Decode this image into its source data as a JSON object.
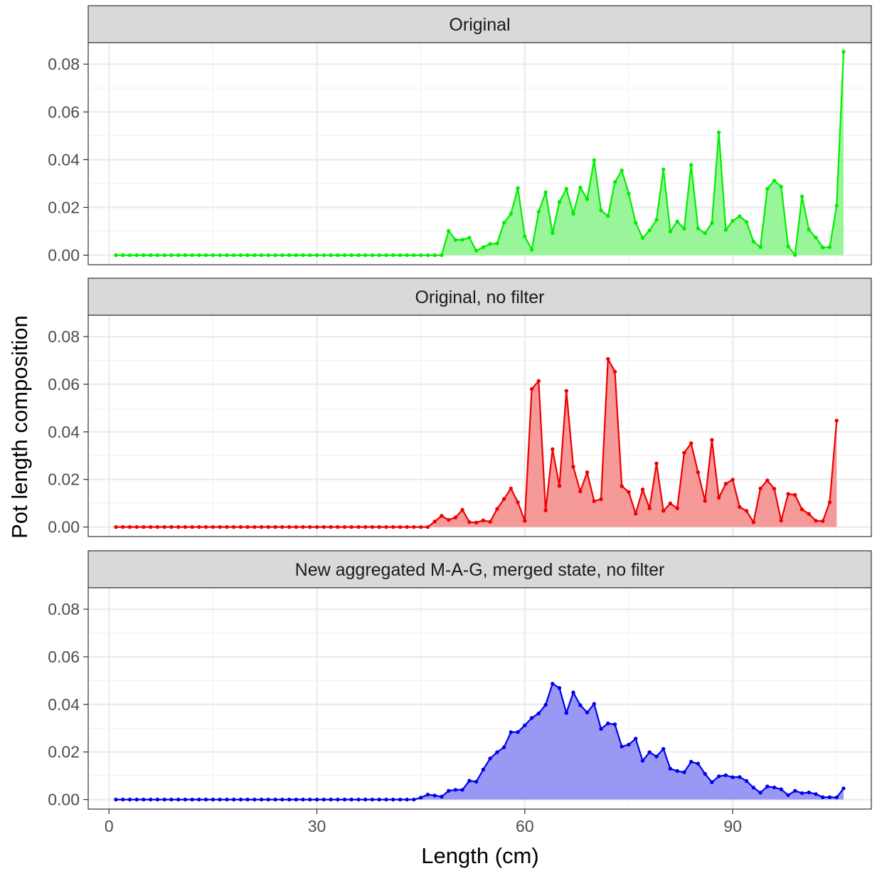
{
  "chart_data": {
    "type": "area",
    "xlabel": "Length (cm)",
    "ylabel": "Pot length composition",
    "xlim": [
      -3,
      110
    ],
    "ylim": [
      -0.004,
      0.089
    ],
    "x_ticks": [
      0,
      30,
      60,
      90
    ],
    "y_ticks": [
      0.0,
      0.02,
      0.04,
      0.06,
      0.08
    ],
    "y_tick_labels": [
      "0.00",
      "0.02",
      "0.04",
      "0.06",
      "0.08"
    ],
    "grid": true,
    "legend": "none",
    "x_start": 1,
    "x_step": 1,
    "panels": [
      {
        "name": "Original",
        "color": "#00ee00",
        "fill": "#99f599",
        "values": [
          0,
          0,
          0,
          0,
          0,
          0,
          0,
          0,
          0,
          0,
          0,
          0,
          0,
          0,
          0,
          0,
          0,
          0,
          0,
          0,
          0,
          0,
          0,
          0,
          0,
          0,
          0,
          0,
          0,
          0,
          0,
          0,
          0,
          0,
          0,
          0,
          0,
          0,
          0,
          0,
          0,
          0,
          0,
          0,
          0,
          0,
          0,
          0,
          0.0102,
          0.0064,
          0.0065,
          0.0073,
          0.0019,
          0.0033,
          0.0047,
          0.0049,
          0.0136,
          0.0173,
          0.0281,
          0.0079,
          0.0023,
          0.0182,
          0.0263,
          0.0093,
          0.0223,
          0.0278,
          0.0173,
          0.0283,
          0.0235,
          0.0398,
          0.0188,
          0.0164,
          0.0306,
          0.0355,
          0.0258,
          0.0136,
          0.0072,
          0.0104,
          0.0148,
          0.0359,
          0.0099,
          0.0141,
          0.0111,
          0.0378,
          0.0112,
          0.0092,
          0.0135,
          0.0514,
          0.0106,
          0.0144,
          0.0163,
          0.0139,
          0.0057,
          0.0034,
          0.0278,
          0.0312,
          0.0287,
          0.0037,
          0.0001,
          0.0246,
          0.0107,
          0.0074,
          0.0032,
          0.0034,
          0.0207,
          0.0852
        ]
      },
      {
        "name": "Original, no filter",
        "color": "#ee0000",
        "fill": "#f59999",
        "values": [
          0,
          0,
          0,
          0,
          0,
          0,
          0,
          0,
          0,
          0,
          0,
          0,
          0,
          0,
          0,
          0,
          0,
          0,
          0,
          0,
          0,
          0,
          0,
          0,
          0,
          0,
          0,
          0,
          0,
          0,
          0,
          0,
          0,
          0,
          0,
          0,
          0,
          0,
          0,
          0,
          0,
          0,
          0,
          0,
          0,
          0,
          0.0023,
          0.0047,
          0.003,
          0.004,
          0.0072,
          0.0021,
          0.0019,
          0.0028,
          0.0022,
          0.0076,
          0.0118,
          0.0162,
          0.0104,
          0.0026,
          0.058,
          0.0614,
          0.007,
          0.0327,
          0.0173,
          0.0572,
          0.0253,
          0.015,
          0.023,
          0.0109,
          0.0117,
          0.0706,
          0.0653,
          0.0172,
          0.0147,
          0.0056,
          0.0158,
          0.0079,
          0.0267,
          0.0068,
          0.0099,
          0.0079,
          0.0312,
          0.0352,
          0.023,
          0.011,
          0.0366,
          0.0123,
          0.0182,
          0.0199,
          0.0084,
          0.0068,
          0.002,
          0.0162,
          0.0196,
          0.0161,
          0.0027,
          0.0139,
          0.0135,
          0.0074,
          0.0055,
          0.0026,
          0.0025,
          0.0104,
          0.0447
        ]
      },
      {
        "name": "New aggregated M-A-G, merged state, no filter",
        "color": "#0000ee",
        "fill": "#9999f5",
        "values": [
          0,
          0,
          0,
          0,
          0,
          0,
          0,
          0,
          0,
          0,
          0,
          0,
          0,
          0,
          0,
          0,
          0,
          0,
          0,
          0,
          0,
          0,
          0,
          0,
          0,
          0,
          0,
          0,
          0,
          0,
          0,
          0,
          0,
          0,
          0,
          0,
          0,
          0,
          0,
          0,
          0,
          0,
          0,
          0,
          0.0008,
          0.0021,
          0.0017,
          0.0012,
          0.0037,
          0.0041,
          0.0041,
          0.0079,
          0.0075,
          0.0126,
          0.0173,
          0.0199,
          0.022,
          0.0283,
          0.0284,
          0.0312,
          0.0343,
          0.0362,
          0.0398,
          0.0487,
          0.0469,
          0.0364,
          0.045,
          0.0397,
          0.0366,
          0.0402,
          0.0297,
          0.032,
          0.0316,
          0.0223,
          0.0231,
          0.0256,
          0.0163,
          0.0199,
          0.0181,
          0.0213,
          0.013,
          0.012,
          0.0115,
          0.0159,
          0.0151,
          0.0108,
          0.0073,
          0.0098,
          0.0102,
          0.0094,
          0.0095,
          0.0078,
          0.005,
          0.0029,
          0.0055,
          0.0051,
          0.0043,
          0.0019,
          0.0037,
          0.0027,
          0.003,
          0.0023,
          0.001,
          0.001,
          0.0009,
          0.0047
        ]
      }
    ]
  }
}
